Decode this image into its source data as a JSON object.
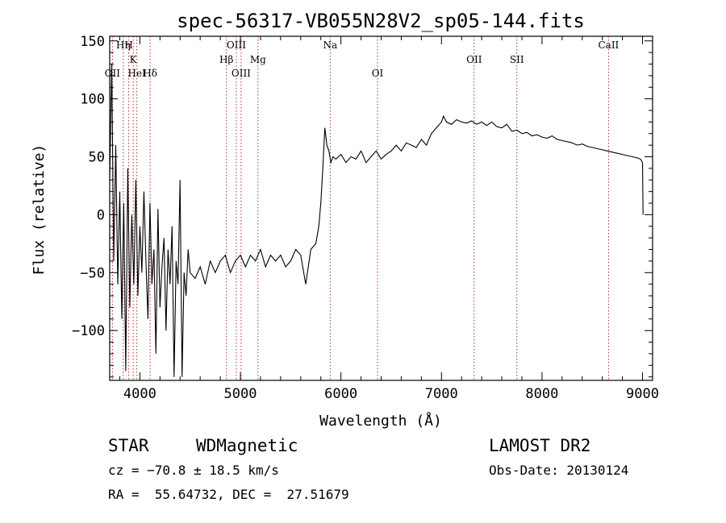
{
  "chart_data": {
    "type": "line",
    "title": "spec-56317-VB055N28V2_sp05-144.fits",
    "xlabel": "Wavelength (Å)",
    "ylabel": "Flux (relative)",
    "xlim": [
      3700,
      9100
    ],
    "ylim": [
      -143,
      154
    ],
    "xticks": [
      4000,
      5000,
      6000,
      7000,
      8000,
      9000
    ],
    "yticks": [
      -100,
      -50,
      0,
      50,
      100,
      150
    ],
    "grid": false,
    "series": [
      {
        "color": "#000000",
        "x": [
          3700,
          3720,
          3740,
          3760,
          3780,
          3800,
          3820,
          3840,
          3860,
          3880,
          3900,
          3920,
          3940,
          3960,
          3980,
          4000,
          4020,
          4040,
          4060,
          4080,
          4100,
          4120,
          4140,
          4160,
          4180,
          4200,
          4220,
          4240,
          4260,
          4280,
          4300,
          4320,
          4340,
          4360,
          4380,
          4400,
          4420,
          4440,
          4460,
          4480,
          4500,
          4550,
          4600,
          4650,
          4700,
          4750,
          4800,
          4850,
          4900,
          4950,
          5000,
          5050,
          5100,
          5150,
          5200,
          5250,
          5300,
          5350,
          5400,
          5450,
          5500,
          5550,
          5600,
          5650,
          5700,
          5750,
          5780,
          5800,
          5820,
          5840,
          5860,
          5880,
          5900,
          5920,
          5950,
          6000,
          6050,
          6100,
          6150,
          6200,
          6250,
          6300,
          6350,
          6400,
          6450,
          6500,
          6550,
          6600,
          6650,
          6700,
          6750,
          6800,
          6850,
          6900,
          6950,
          7000,
          7020,
          7050,
          7100,
          7150,
          7200,
          7250,
          7300,
          7350,
          7400,
          7450,
          7500,
          7550,
          7600,
          7650,
          7700,
          7750,
          7800,
          7850,
          7900,
          7950,
          8000,
          8050,
          8100,
          8150,
          8200,
          8250,
          8300,
          8350,
          8400,
          8450,
          8500,
          8550,
          8600,
          8650,
          8700,
          8750,
          8800,
          8850,
          8900,
          8950,
          8980,
          9000,
          9005
        ],
        "y": [
          30,
          130,
          -40,
          60,
          -60,
          20,
          -90,
          10,
          -135,
          40,
          -80,
          0,
          -60,
          30,
          -70,
          -10,
          -50,
          20,
          -40,
          -90,
          10,
          -60,
          -30,
          -120,
          5,
          -80,
          -45,
          -20,
          -100,
          -30,
          -60,
          -10,
          -140,
          -40,
          -60,
          30,
          -140,
          -50,
          -70,
          -30,
          -50,
          -55,
          -45,
          -60,
          -40,
          -50,
          -40,
          -35,
          -50,
          -40,
          -35,
          -45,
          -35,
          -40,
          -30,
          -45,
          -35,
          -40,
          -35,
          -45,
          -40,
          -30,
          -35,
          -60,
          -30,
          -25,
          -10,
          10,
          40,
          75,
          60,
          55,
          45,
          50,
          48,
          52,
          45,
          50,
          48,
          55,
          45,
          50,
          55,
          48,
          52,
          55,
          60,
          55,
          62,
          60,
          58,
          65,
          60,
          70,
          75,
          80,
          85,
          80,
          78,
          82,
          80,
          79,
          81,
          78,
          80,
          77,
          80,
          76,
          75,
          78,
          72,
          73,
          70,
          71,
          68,
          69,
          67,
          66,
          68,
          65,
          64,
          63,
          62,
          60,
          61,
          59,
          58,
          57,
          56,
          55,
          54,
          53,
          52,
          51,
          50,
          49,
          48,
          45,
          0
        ]
      }
    ],
    "lines": [
      {
        "label": "Hη",
        "wl": 3835,
        "row": 0
      },
      {
        "label": "H",
        "wl": 3889,
        "row": 0
      },
      {
        "label": "K",
        "wl": 3934,
        "row": 1
      },
      {
        "label": "OII",
        "wl": 3727,
        "row": 2
      },
      {
        "label": "HeI",
        "wl": 3970,
        "row": 2
      },
      {
        "label": "Hδ",
        "wl": 4102,
        "row": 2
      },
      {
        "label": "OIII",
        "wl": 4959,
        "row": 0
      },
      {
        "label": "Hβ",
        "wl": 4861,
        "row": 1
      },
      {
        "label": "OIII",
        "wl": 5007,
        "row": 2
      },
      {
        "label": "Mg",
        "wl": 5175,
        "row": 1
      },
      {
        "label": "Na",
        "wl": 5893,
        "row": 0
      },
      {
        "label": "OI",
        "wl": 6364,
        "row": 2
      },
      {
        "label": "OII",
        "wl": 7325,
        "row": 1
      },
      {
        "label": "SII",
        "wl": 7750,
        "row": 1
      },
      {
        "label": "CaII",
        "wl": 8662,
        "row": 0
      }
    ]
  },
  "info": {
    "class": "STAR",
    "subclass": "WDMagnetic",
    "survey": "LAMOST DR2",
    "cz": "cz = −70.8 ± 18.5 km/s",
    "obsdate": "Obs-Date: 20130124",
    "radec": "RA =  55.64732, DEC =  27.51679"
  }
}
